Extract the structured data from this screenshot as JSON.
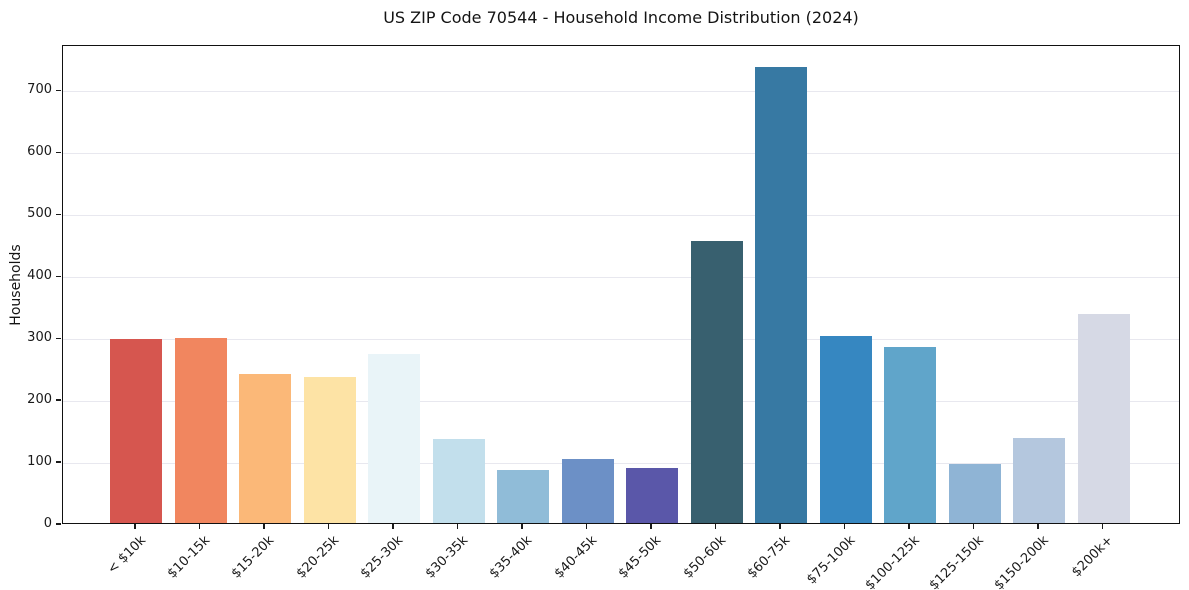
{
  "page": {
    "background": "#ffffff"
  },
  "chart_data": {
    "type": "bar",
    "title": "US ZIP Code 70544 - Household Income Distribution (2024)",
    "xlabel": "",
    "ylabel": "Households",
    "categories": [
      "< $10k",
      "$10-15k",
      "$15-20k",
      "$20-25k",
      "$25-30k",
      "$30-35k",
      "$35-40k",
      "$40-45k",
      "$45-50k",
      "$50-60k",
      "$60-75k",
      "$75-100k",
      "$100-125k",
      "$125-150k",
      "$150-200k",
      "$200k+"
    ],
    "values": [
      297,
      299,
      241,
      236,
      273,
      135,
      85,
      103,
      88,
      455,
      736,
      302,
      284,
      95,
      137,
      338
    ],
    "bar_colors": [
      "#d6564f",
      "#f1865f",
      "#fbb878",
      "#fde3a5",
      "#e9f4f8",
      "#c2dfec",
      "#90bcd8",
      "#6c90c6",
      "#5a57a9",
      "#38606f",
      "#3779a3",
      "#3687c1",
      "#60a5ca",
      "#8fb4d5",
      "#b4c7de",
      "#d6d9e5"
    ],
    "ylim": [
      0,
      773
    ],
    "yticks": [
      0,
      100,
      200,
      300,
      400,
      500,
      600,
      700
    ],
    "grid": "horizontal-only",
    "gridline_color": "#e8e8ef",
    "legend": "none",
    "x_tick_rotation_deg": 45
  }
}
